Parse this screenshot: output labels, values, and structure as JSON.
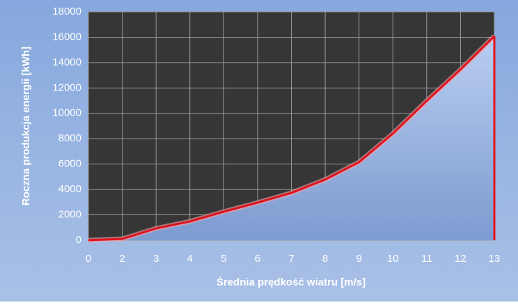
{
  "chart_data": {
    "type": "area",
    "x_label": "Średnia prędkość wiatru [m/s]",
    "y_label": "Roczna produkcja energii [kWh]",
    "categories": [
      "0",
      "2",
      "3",
      "4",
      "5",
      "6",
      "7",
      "8",
      "9",
      "10",
      "11",
      "12",
      "13"
    ],
    "series": [
      {
        "name": "Roczna produkcja energii",
        "color": "#e0141e",
        "values": [
          0,
          100,
          930,
          1480,
          2250,
          2960,
          3730,
          4780,
          6150,
          8400,
          10980,
          13450,
          16080
        ]
      }
    ],
    "ylim": [
      0,
      18000
    ],
    "yticks": [
      0,
      2000,
      4000,
      6000,
      8000,
      10000,
      12000,
      14000,
      16000,
      18000
    ],
    "grid": true
  }
}
